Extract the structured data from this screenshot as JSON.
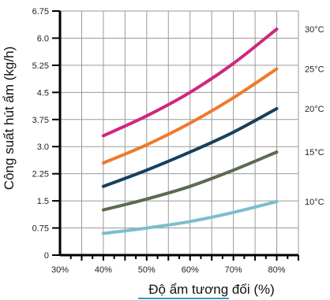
{
  "chart_data": {
    "type": "line",
    "title": "",
    "xlabel": "Độ ẩm tương đối (%)",
    "ylabel": "Công suất hút ẩm (kg/h)",
    "xlim": [
      30,
      85
    ],
    "ylim": [
      0,
      6.75
    ],
    "x_ticks": [
      {
        "value": 30,
        "label": "30%"
      },
      {
        "value": 40,
        "label": "40%"
      },
      {
        "value": 50,
        "label": "50%"
      },
      {
        "value": 60,
        "label": "60%"
      },
      {
        "value": 70,
        "label": "70%"
      },
      {
        "value": 80,
        "label": "80%"
      }
    ],
    "y_ticks": [
      {
        "value": 0,
        "label": "0"
      },
      {
        "value": 0.75,
        "label": "0.75"
      },
      {
        "value": 1.5,
        "label": "1.5"
      },
      {
        "value": 2.25,
        "label": "2.25"
      },
      {
        "value": 3.0,
        "label": "3.0"
      },
      {
        "value": 3.75,
        "label": "3.75"
      },
      {
        "value": 4.5,
        "label": "4.5"
      },
      {
        "value": 5.25,
        "label": "5.25"
      },
      {
        "value": 6.0,
        "label": "6.0"
      },
      {
        "value": 6.75,
        "label": "6.75"
      }
    ],
    "grid": true,
    "x": [
      40,
      50,
      60,
      70,
      80
    ],
    "series": [
      {
        "name": "30°C",
        "color": "#d0267f",
        "values": [
          3.3,
          3.85,
          4.5,
          5.3,
          6.25
        ]
      },
      {
        "name": "25°C",
        "color": "#ee7a2a",
        "values": [
          2.55,
          3.05,
          3.65,
          4.35,
          5.15
        ]
      },
      {
        "name": "20°C",
        "color": "#17405f",
        "values": [
          1.9,
          2.35,
          2.85,
          3.4,
          4.05
        ]
      },
      {
        "name": "15°C",
        "color": "#5d6b4e",
        "values": [
          1.25,
          1.55,
          1.9,
          2.35,
          2.85
        ]
      },
      {
        "name": "10°C",
        "color": "#7bbdcd",
        "values": [
          0.6,
          0.75,
          0.93,
          1.18,
          1.48
        ]
      }
    ],
    "legend": "right, labels at line ends",
    "accent_underline_color": "#2f9fc4"
  }
}
